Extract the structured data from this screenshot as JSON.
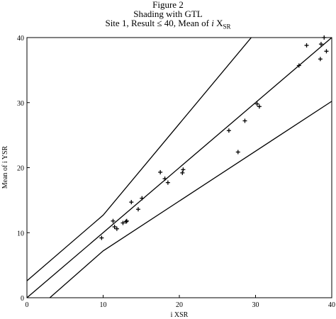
{
  "figure": {
    "label": "Figure 2",
    "title": "Shading with GTL",
    "subtitle_prefix": "Site 1, Result ≤ 40, Mean of ",
    "subtitle_var": "i",
    "subtitle_x": " X",
    "subtitle_sub": "SR"
  },
  "chart_data": {
    "type": "scatter",
    "title": "Shading with GTL",
    "xlabel": "i XSR",
    "ylabel": "Mean of i YSR",
    "xlim": [
      0,
      40
    ],
    "ylim": [
      0,
      40
    ],
    "xticks": [
      0,
      10,
      20,
      30,
      40
    ],
    "yticks": [
      0,
      10,
      20,
      30,
      40
    ],
    "grid": false,
    "marker": "+",
    "series": [
      {
        "x": [
          9.8,
          11.3,
          11.5,
          11.8,
          12.6,
          13.0,
          13.1,
          13.7,
          14.6,
          15.1,
          17.5,
          18.1,
          18.5,
          20.4,
          20.5,
          26.5,
          27.7,
          28.6,
          30.2,
          30.5,
          35.7,
          36.7,
          38.5,
          38.6,
          39.0,
          39.3
        ],
        "y": [
          9.2,
          11.8,
          10.9,
          10.6,
          11.5,
          11.7,
          11.8,
          14.7,
          13.6,
          15.3,
          19.3,
          18.3,
          17.7,
          19.2,
          19.7,
          25.7,
          22.4,
          27.2,
          29.8,
          29.4,
          35.7,
          38.8,
          36.7,
          39.0,
          40.0,
          37.9
        ]
      }
    ],
    "lines": [
      {
        "points": [
          [
            0,
            2.6
          ],
          [
            10,
            12.7
          ],
          [
            30,
            40.8
          ]
        ]
      },
      {
        "points": [
          [
            0,
            0
          ],
          [
            40,
            40
          ]
        ]
      },
      {
        "points": [
          [
            3.0,
            0
          ],
          [
            10,
            7.2
          ],
          [
            40,
            30.2
          ]
        ]
      }
    ]
  }
}
